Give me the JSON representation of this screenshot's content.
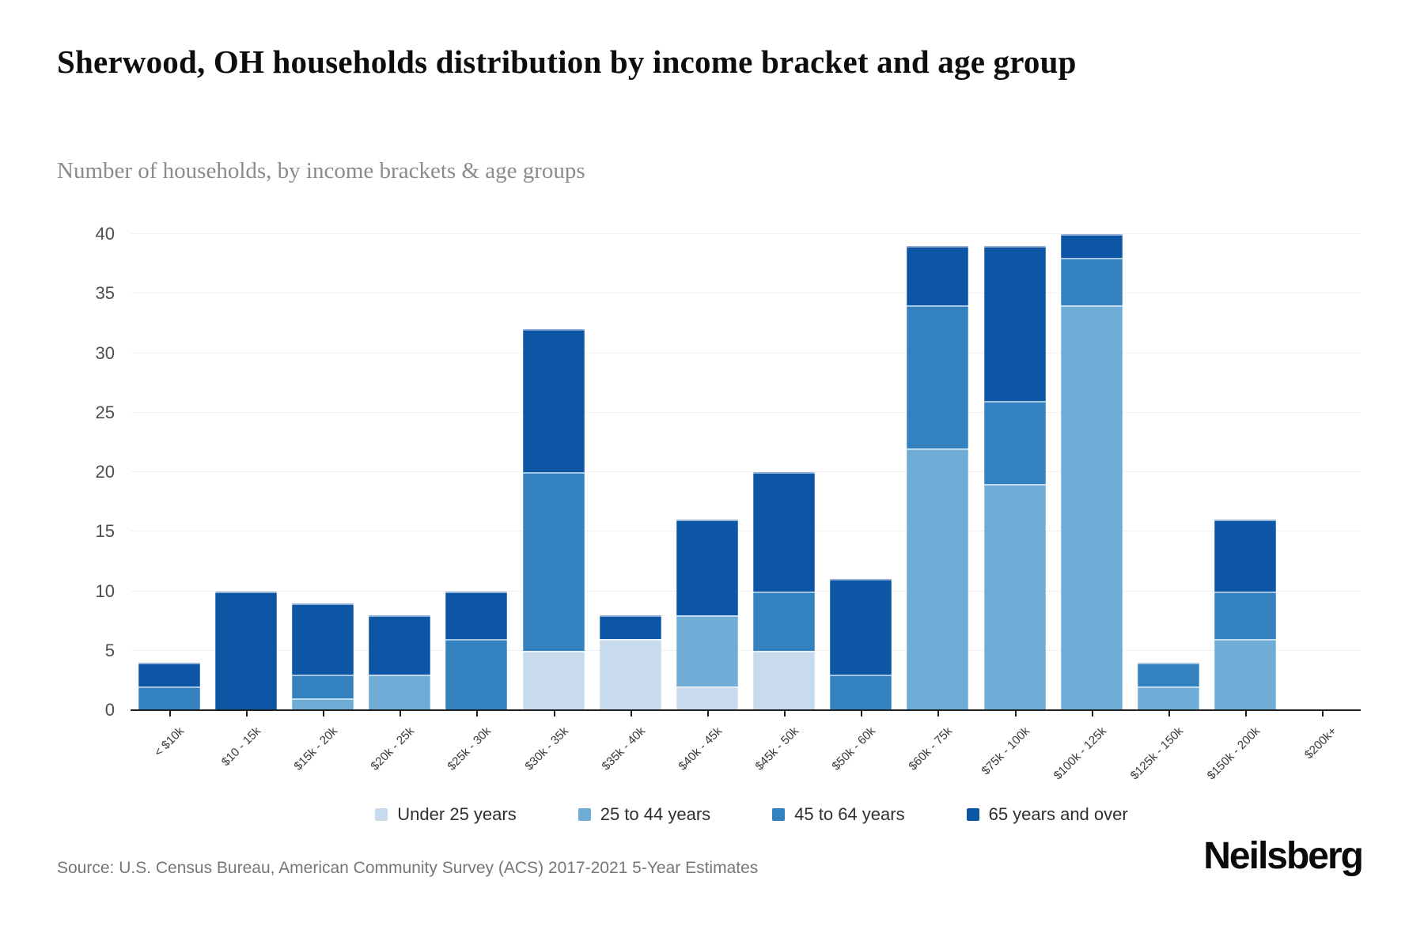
{
  "page": {
    "title": "Sherwood, OH households distribution by income bracket and age group",
    "subtitle": "Number of households, by income brackets & age groups",
    "source": "Source: U.S. Census Bureau, American Community Survey (ACS) 2017-2021 5-Year Estimates",
    "brand": "Neilsberg"
  },
  "chart_data": {
    "type": "bar",
    "stacked": true,
    "title": "Sherwood, OH households distribution by income bracket and age group",
    "subtitle": "Number of households, by income brackets & age groups",
    "xlabel": "",
    "ylabel": "Number of households",
    "categories": [
      "< $10k",
      "$10 - 15k",
      "$15k - 20k",
      "$20k - 25k",
      "$25k - 30k",
      "$30k - 35k",
      "$35k - 40k",
      "$40k - 45k",
      "$45k - 50k",
      "$50k - 60k",
      "$60k - 75k",
      "$75k - 100k",
      "$100k - 125k",
      "$125k - 150k",
      "$150k - 200k",
      "$200k+"
    ],
    "series": [
      {
        "name": "Under 25 years",
        "color": "#c7dbec",
        "values": [
          0,
          0,
          0,
          0,
          0,
          5,
          6,
          2,
          5,
          0,
          0,
          0,
          0,
          0,
          0,
          0
        ]
      },
      {
        "name": "25 to 44 years",
        "color": "#6fadd6",
        "values": [
          0,
          0,
          1,
          3,
          0,
          0,
          0,
          6,
          0,
          0,
          22,
          19,
          34,
          2,
          6,
          0
        ]
      },
      {
        "name": "45 to 64 years",
        "color": "#3382bf",
        "values": [
          2,
          0,
          2,
          0,
          6,
          15,
          0,
          0,
          5,
          3,
          12,
          7,
          4,
          2,
          4,
          0
        ]
      },
      {
        "name": "65 years and over",
        "color": "#0d55a5",
        "values": [
          2,
          10,
          6,
          5,
          4,
          12,
          2,
          8,
          10,
          8,
          5,
          13,
          2,
          0,
          6,
          0
        ]
      }
    ],
    "totals": [
      4,
      10,
      9,
      8,
      10,
      32,
      8,
      16,
      20,
      11,
      39,
      39,
      40,
      4,
      16,
      0
    ],
    "yticks": [
      0,
      5,
      10,
      15,
      20,
      25,
      30,
      35,
      40
    ],
    "ylim": [
      0,
      40
    ],
    "grid": true,
    "legend_position": "bottom"
  }
}
